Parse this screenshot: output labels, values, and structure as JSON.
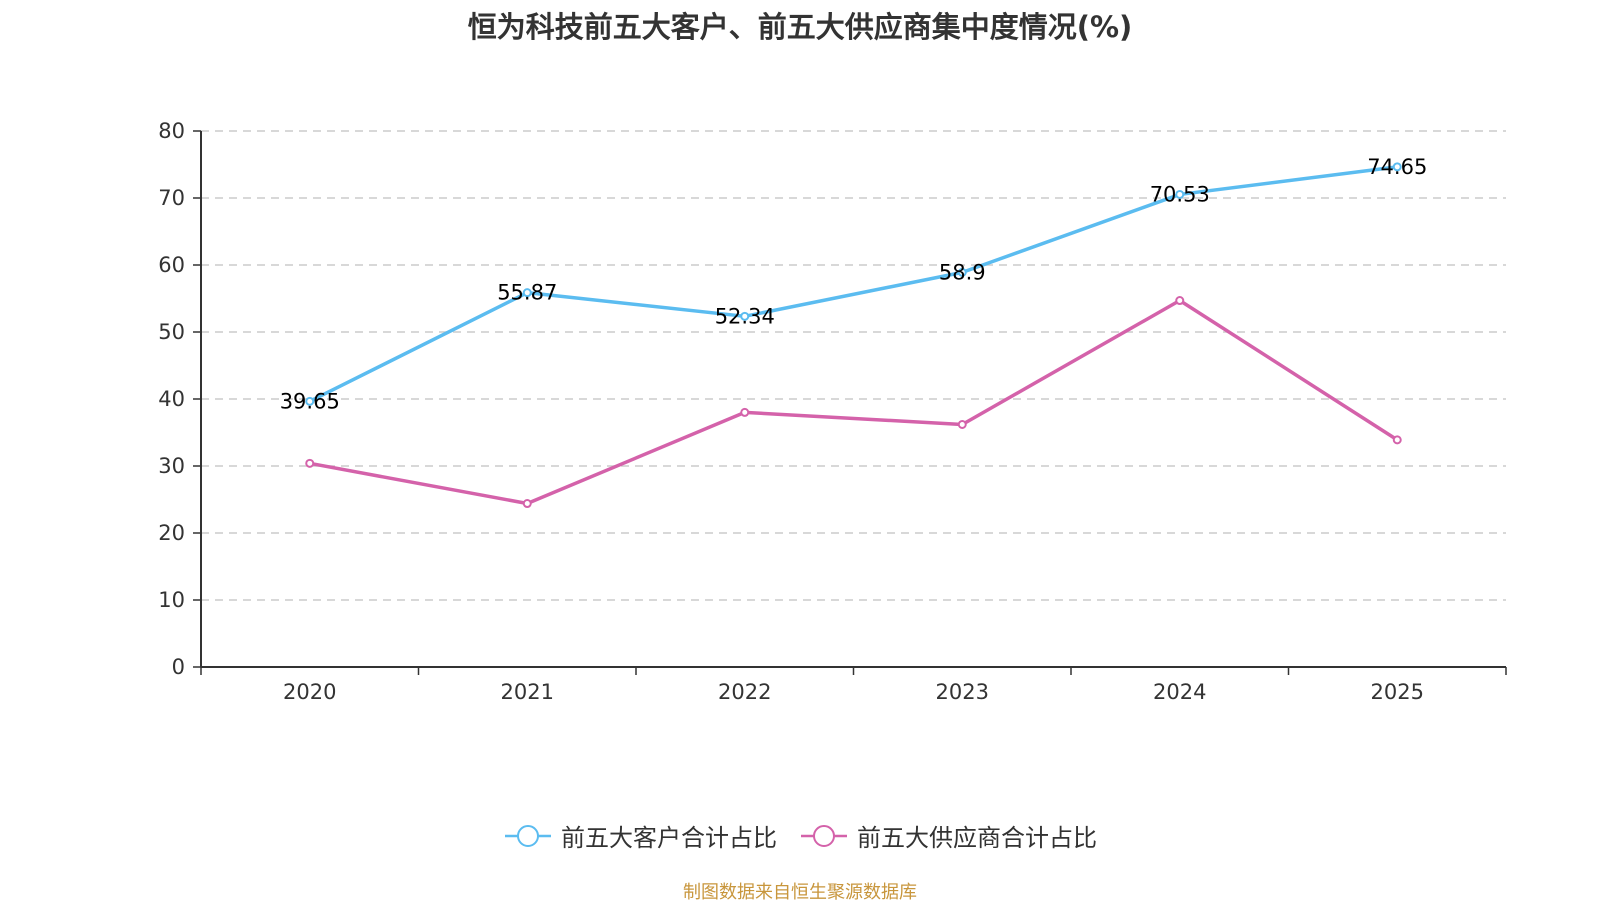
{
  "chart_data": {
    "type": "line",
    "title": "恒为科技前五大客户、前五大供应商集中度情况(%)",
    "xlabel": "",
    "ylabel": "",
    "categories": [
      "2020",
      "2021",
      "2022",
      "2023",
      "2024",
      "2025"
    ],
    "ylim": [
      0,
      80
    ],
    "yticks": [
      0,
      10,
      20,
      30,
      40,
      50,
      60,
      70,
      80
    ],
    "grid": true,
    "legend_position": "bottom-center",
    "series": [
      {
        "name": "前五大客户合计占比",
        "color": "#5bbcf0",
        "values": [
          39.65,
          55.87,
          52.34,
          58.9,
          70.53,
          74.65
        ],
        "labels": [
          "39.65",
          "55.87",
          "52.34",
          "58.9",
          "70.53",
          "74.65"
        ],
        "show_labels": true
      },
      {
        "name": "前五大供应商合计占比",
        "color": "#d462aa",
        "values": [
          30.4,
          24.4,
          38.0,
          36.2,
          54.7,
          33.9
        ],
        "show_labels": false
      }
    ],
    "source_note": "制图数据来自恒生聚源数据库"
  }
}
